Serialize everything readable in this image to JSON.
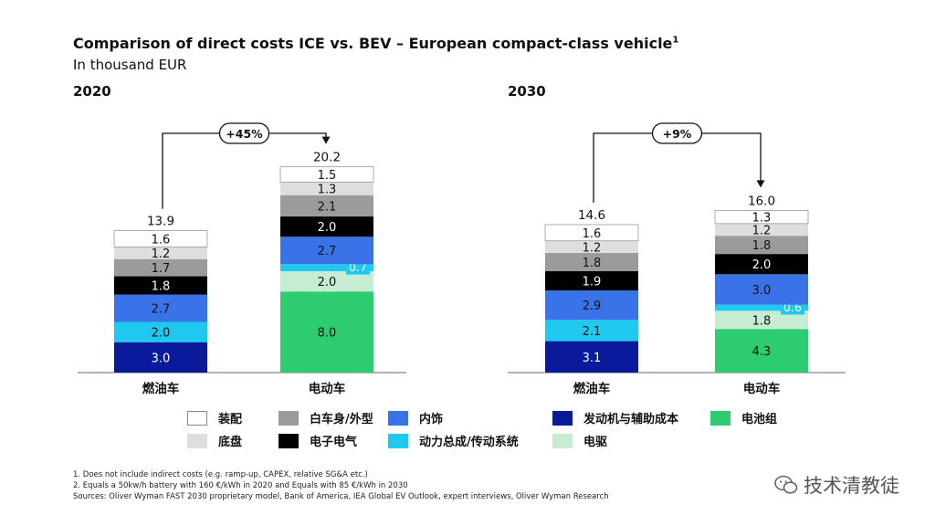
{
  "title": "Comparison of direct costs ICE vs. BEV – European compact-class vehicle",
  "title_sup": "1",
  "subtitle": "In thousand EUR",
  "colors": {
    "装配": "#ffffff",
    "底盘": "#dedede",
    "白车身/外型": "#9b9b9b",
    "电子电气": "#000000",
    "内饰": "#3a73e8",
    "动力总成/传动系统": "#1fc8ef",
    "电驱": "#c6ecd4",
    "发动机与辅助成本": "#0a1a9a",
    "电池组": "#2ecc71"
  },
  "chart_data": [
    {
      "type": "bar",
      "stacked": true,
      "panel_title": "2020",
      "categories": [
        "燃油车",
        "电动车"
      ],
      "totals": [
        13.9,
        20.2
      ],
      "delta_label": "+45%",
      "series": [
        {
          "name": "发动机与辅助成本",
          "values": [
            3.0,
            null
          ]
        },
        {
          "name": "电池组",
          "values": [
            null,
            8.0
          ]
        },
        {
          "name": "电驱",
          "values": [
            null,
            2.0
          ]
        },
        {
          "name": "动力总成/传动系统",
          "values": [
            2.0,
            0.7
          ]
        },
        {
          "name": "内饰",
          "values": [
            2.7,
            2.7
          ]
        },
        {
          "name": "电子电气",
          "values": [
            1.8,
            2.0
          ]
        },
        {
          "name": "白车身/外型",
          "values": [
            1.7,
            2.1
          ]
        },
        {
          "name": "底盘",
          "values": [
            1.2,
            1.3
          ]
        },
        {
          "name": "装配",
          "values": [
            1.6,
            1.5
          ]
        }
      ]
    },
    {
      "type": "bar",
      "stacked": true,
      "panel_title": "2030",
      "categories": [
        "燃油车",
        "电动车"
      ],
      "totals": [
        14.6,
        16.0
      ],
      "delta_label": "+9%",
      "series": [
        {
          "name": "发动机与辅助成本",
          "values": [
            3.1,
            null
          ]
        },
        {
          "name": "电池组",
          "values": [
            null,
            4.3
          ]
        },
        {
          "name": "电驱",
          "values": [
            null,
            1.8
          ]
        },
        {
          "name": "动力总成/传动系统",
          "values": [
            2.1,
            0.6
          ]
        },
        {
          "name": "内饰",
          "values": [
            2.9,
            3.0
          ]
        },
        {
          "name": "电子电气",
          "values": [
            1.9,
            2.0
          ]
        },
        {
          "name": "白车身/外型",
          "values": [
            1.8,
            1.8
          ]
        },
        {
          "name": "底盘",
          "values": [
            1.2,
            1.2
          ]
        },
        {
          "name": "装配",
          "values": [
            1.6,
            1.3
          ]
        }
      ]
    }
  ],
  "legend": [
    {
      "key": "装配",
      "label": "装配"
    },
    {
      "key": "底盘",
      "label": "底盘"
    },
    {
      "key": "白车身/外型",
      "label": "白车身/外型"
    },
    {
      "key": "电子电气",
      "label": "电子电气"
    },
    {
      "key": "内饰",
      "label": "内饰"
    },
    {
      "key": "动力总成/传动系统",
      "label": "动力总成/传动系统"
    },
    {
      "key": "发动机与辅助成本",
      "label": "发动机与辅助成本"
    },
    {
      "key": "电驱",
      "label": "电驱"
    },
    {
      "key": "电池组",
      "label": "电池组"
    }
  ],
  "footnotes": [
    "1. Does not include indirect costs (e.g. ramp-up, CAPEX, relative SG&A etc.)",
    "2. Equals a 50kw/h battery with 160 €/kWh in 2020 and Equals with 85 €/kWh in 2030",
    "Sources: Oliver Wyman FAST 2030 proprietary model, Bank of America, IEA Global EV Outlook, expert interviews, Oliver Wyman Research"
  ],
  "watermark": "技术清教徒"
}
